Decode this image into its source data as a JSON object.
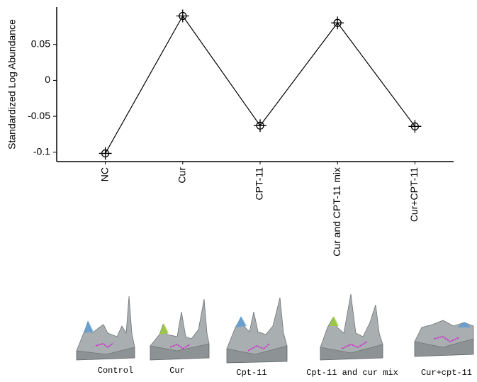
{
  "chart_data": {
    "type": "line",
    "y_label": "Standardized Log Abundance",
    "categories": [
      "NC",
      "Cur",
      "CPT-11",
      "Cur and CPT-11 mix",
      "Cur+CPT-11"
    ],
    "values": [
      -0.1016,
      0.0897,
      -0.063,
      0.08,
      -0.064
    ],
    "color": "#000000",
    "ylim": [
      -0.113,
      0.102
    ],
    "yticks": [
      -0.1,
      -0.05,
      0,
      0.05
    ]
  },
  "images": [
    {
      "caption": "Control"
    },
    {
      "caption": "Cur"
    },
    {
      "caption": "Cpt-11"
    },
    {
      "caption": "Cpt-11 and cur mix"
    },
    {
      "caption": "Cur+cpt-11"
    }
  ]
}
